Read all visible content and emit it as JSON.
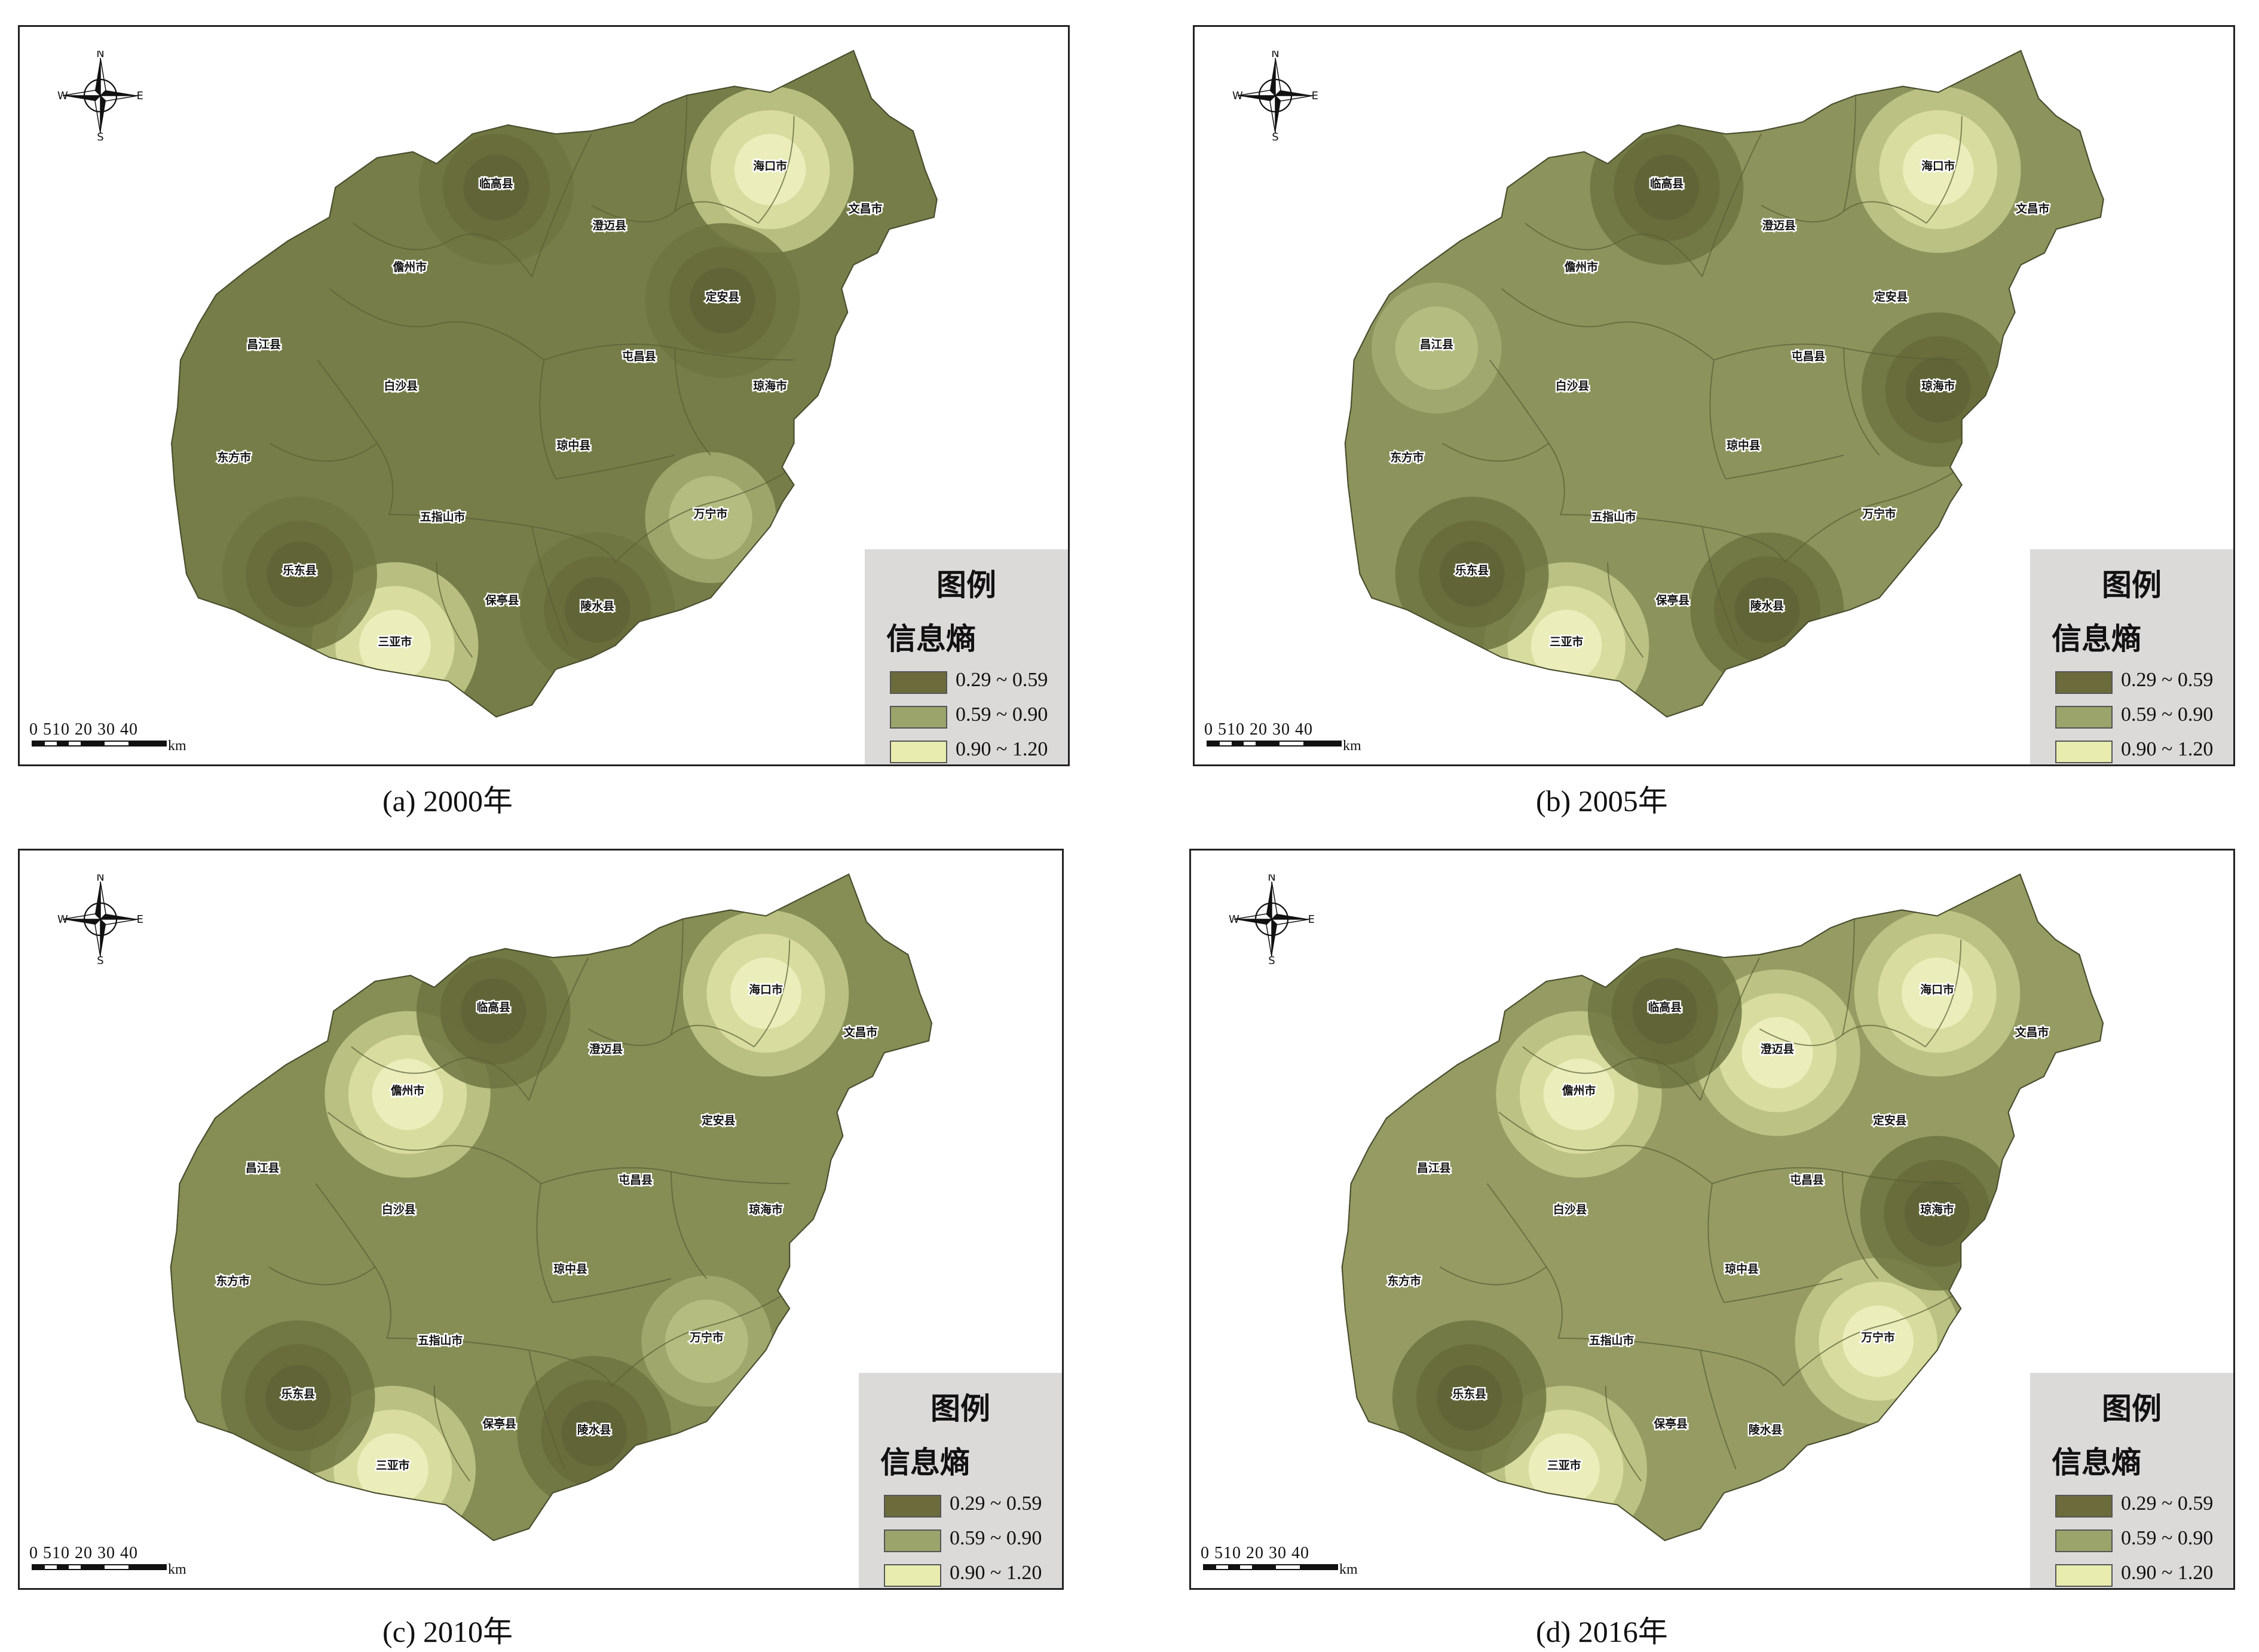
{
  "legend_colors": [
    "#6b6b3c",
    "#9aa46b",
    "#e8ecae"
  ],
  "panels": [
    {
      "caption": "(a) 2000年",
      "legend": {
        "title": "图例",
        "subtitle": "信息熵",
        "classes": [
          "0.29 ~ 0.59",
          "0.59 ~ 0.90",
          "0.90 ~ 1.20"
        ]
      },
      "scale": {
        "numbers": "0 510  20  30  40",
        "unit": "km"
      },
      "compass": {
        "n": "N",
        "s": "S",
        "e": "E",
        "w": "W"
      },
      "base_color": "#777d48",
      "hotspots": [
        {
          "town": "海口市",
          "level": "high"
        },
        {
          "town": "三亚市",
          "level": "high"
        },
        {
          "town": "万宁市",
          "level": "mid"
        },
        {
          "town": "临高县",
          "level": "low"
        },
        {
          "town": "定安县",
          "level": "low"
        },
        {
          "town": "乐东县",
          "level": "low"
        },
        {
          "town": "陵水县",
          "level": "low"
        }
      ],
      "towns": [
        "海口市",
        "文昌市",
        "临高县",
        "澄迈县",
        "儋州市",
        "定安县",
        "昌江县",
        "屯昌县",
        "白沙县",
        "琼海市",
        "东方市",
        "琼中县",
        "万宁市",
        "五指山市",
        "乐东县",
        "保亭县",
        "陵水县",
        "三亚市"
      ]
    },
    {
      "caption": "(b) 2005年",
      "legend": {
        "title": "图例",
        "subtitle": "信息熵",
        "classes": [
          "0.29 ~ 0.59",
          "0.59 ~ 0.90",
          "0.90 ~ 1.20"
        ]
      },
      "scale": {
        "numbers": "0 510  20  30  40",
        "unit": "km"
      },
      "compass": {
        "n": "N",
        "s": "S",
        "e": "E",
        "w": "W"
      },
      "base_color": "#8d935c",
      "hotspots": [
        {
          "town": "海口市",
          "level": "high"
        },
        {
          "town": "三亚市",
          "level": "high"
        },
        {
          "town": "昌江县",
          "level": "mid"
        },
        {
          "town": "临高县",
          "level": "low"
        },
        {
          "town": "琼海市",
          "level": "low"
        },
        {
          "town": "乐东县",
          "level": "low"
        },
        {
          "town": "陵水县",
          "level": "low"
        }
      ],
      "towns": [
        "海口市",
        "文昌市",
        "临高县",
        "澄迈县",
        "儋州市",
        "定安县",
        "昌江县",
        "屯昌县",
        "白沙县",
        "琼海市",
        "东方市",
        "琼中县",
        "万宁市",
        "五指山市",
        "乐东县",
        "保亭县",
        "陵水县",
        "三亚市"
      ]
    },
    {
      "caption": "(c) 2010年",
      "legend": {
        "title": "图例",
        "subtitle": "信息熵",
        "classes": [
          "0.29 ~ 0.59",
          "0.59 ~ 0.90",
          "0.90 ~ 1.20"
        ]
      },
      "scale": {
        "numbers": "0 510  20  30  40",
        "unit": "km"
      },
      "compass": {
        "n": "N",
        "s": "S",
        "e": "E",
        "w": "W"
      },
      "base_color": "#868d55",
      "hotspots": [
        {
          "town": "海口市",
          "level": "high"
        },
        {
          "town": "三亚市",
          "level": "high"
        },
        {
          "town": "儋州市",
          "level": "high"
        },
        {
          "town": "万宁市",
          "level": "mid"
        },
        {
          "town": "临高县",
          "level": "low"
        },
        {
          "town": "乐东县",
          "level": "low"
        },
        {
          "town": "陵水县",
          "level": "low"
        }
      ],
      "towns": [
        "海口市",
        "文昌市",
        "临高县",
        "澄迈县",
        "儋州市",
        "定安县",
        "昌江县",
        "屯昌县",
        "白沙县",
        "琼海市",
        "东方市",
        "琼中县",
        "万宁市",
        "五指山市",
        "乐东县",
        "保亭县",
        "陵水县",
        "三亚市"
      ]
    },
    {
      "caption": "(d) 2016年",
      "legend": {
        "title": "图例",
        "subtitle": "信息熵",
        "classes": [
          "0.29 ~ 0.59",
          "0.59 ~ 0.90",
          "0.90 ~ 1.20"
        ]
      },
      "scale": {
        "numbers": "0 510  20  30  40",
        "unit": "km"
      },
      "compass": {
        "n": "N",
        "s": "S",
        "e": "E",
        "w": "W"
      },
      "base_color": "#959b62",
      "hotspots": [
        {
          "town": "海口市",
          "level": "high"
        },
        {
          "town": "三亚市",
          "level": "high"
        },
        {
          "town": "儋州市",
          "level": "high"
        },
        {
          "town": "澄迈县",
          "level": "high"
        },
        {
          "town": "万宁市",
          "level": "high"
        },
        {
          "town": "临高县",
          "level": "low"
        },
        {
          "town": "乐东县",
          "level": "low"
        },
        {
          "town": "琼海市",
          "level": "low"
        }
      ],
      "towns": [
        "海口市",
        "文昌市",
        "临高县",
        "澄迈县",
        "儋州市",
        "定安县",
        "昌江县",
        "屯昌县",
        "白沙县",
        "琼海市",
        "东方市",
        "琼中县",
        "万宁市",
        "五指山市",
        "乐东县",
        "保亭县",
        "陵水县",
        "三亚市"
      ]
    }
  ]
}
